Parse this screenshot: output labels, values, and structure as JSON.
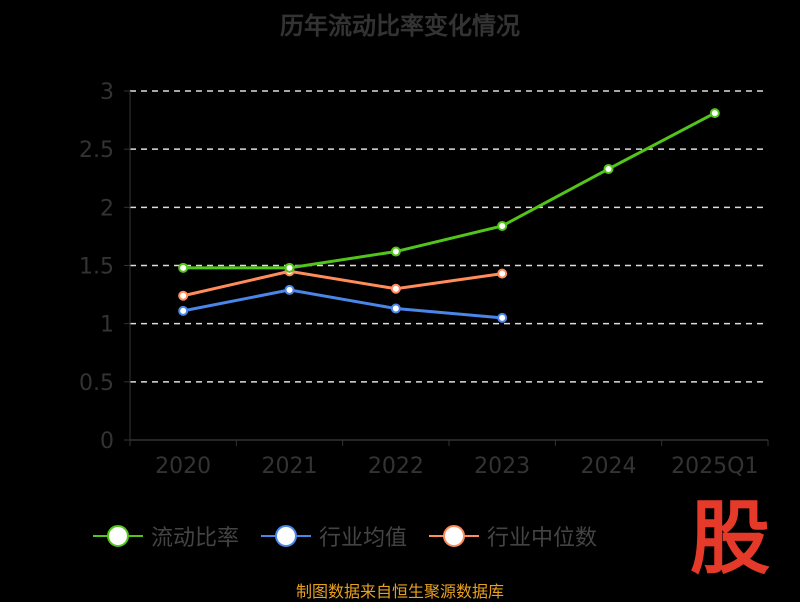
{
  "chart_data": {
    "type": "line",
    "title": "历年流动比率变化情况",
    "categories": [
      "2020",
      "2021",
      "2022",
      "2023",
      "2024",
      "2025Q1"
    ],
    "ylim": [
      0,
      3
    ],
    "yticks": [
      "0",
      "0.5",
      "1",
      "1.5",
      "2",
      "2.5",
      "3"
    ],
    "grid": true,
    "legend_position": "bottom",
    "series": [
      {
        "name": "流动比率",
        "color": "#52c41a",
        "values": [
          1.48,
          1.48,
          1.62,
          1.84,
          2.33,
          2.81
        ]
      },
      {
        "name": "行业均值",
        "color": "#4a86e8",
        "values": [
          1.11,
          1.29,
          1.13,
          1.05,
          null,
          null
        ]
      },
      {
        "name": "行业中位数",
        "color": "#ff8c5a",
        "values": [
          1.24,
          1.45,
          1.3,
          1.43,
          null,
          null
        ]
      }
    ]
  },
  "source": "制图数据来自恒生聚源数据库",
  "logo_text": "股"
}
